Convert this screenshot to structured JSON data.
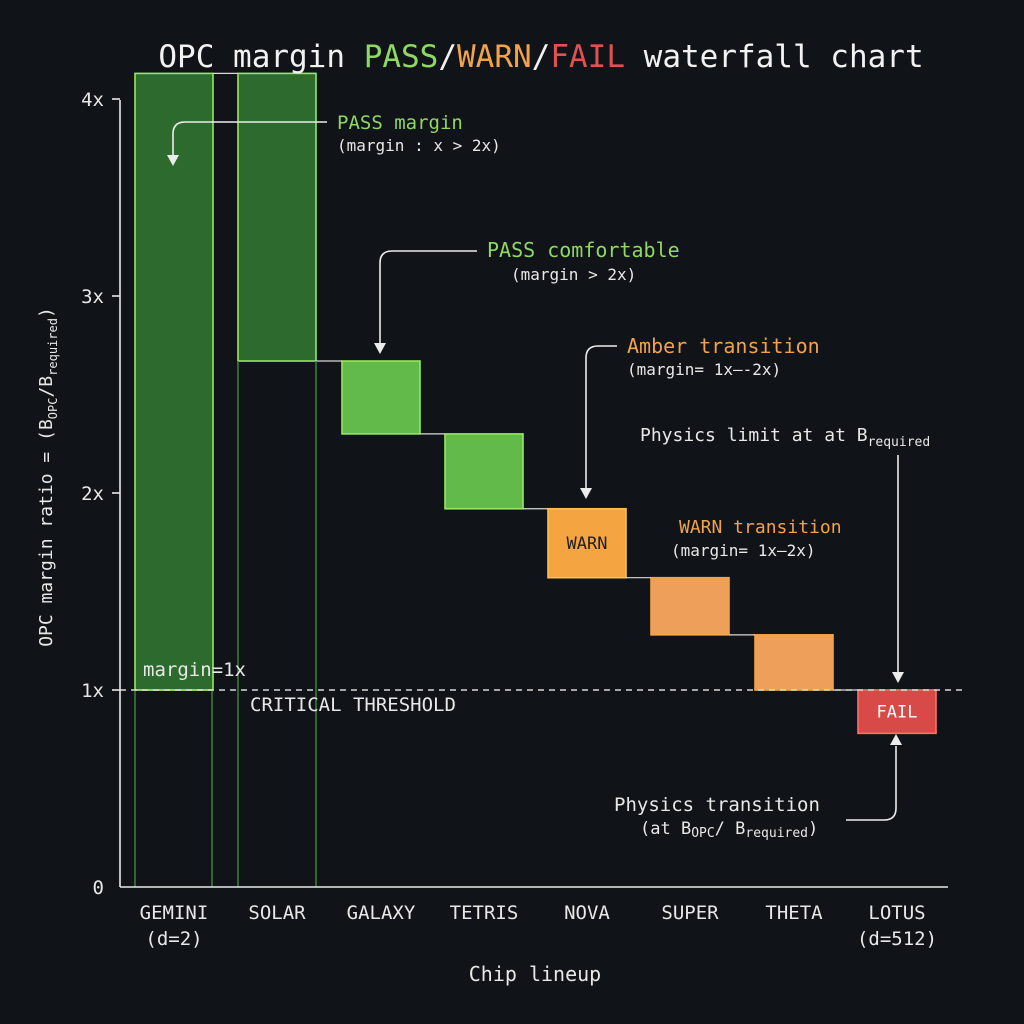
{
  "chart_data": {
    "type": "bar",
    "subtype": "waterfall",
    "title_parts": [
      {
        "text": "OPC margin ",
        "color": "#f2f2f2"
      },
      {
        "text": "PASS",
        "color": "#8fd861"
      },
      {
        "text": "/",
        "color": "#f2f2f2"
      },
      {
        "text": "WARN",
        "color": "#f2a24b"
      },
      {
        "text": "/",
        "color": "#f2f2f2"
      },
      {
        "text": "FAIL",
        "color": "#e0514f"
      },
      {
        "text": " waterfall chart",
        "color": "#f2f2f2"
      }
    ],
    "xlabel": "Chip lineup",
    "ylabel_parts": [
      {
        "text": "OPC margin ratio = (B",
        "sub": false
      },
      {
        "text": "OPC",
        "sub": true
      },
      {
        "text": "/B",
        "sub": false
      },
      {
        "text": "required",
        "sub": true
      },
      {
        "text": ")",
        "sub": false
      }
    ],
    "ylim": [
      0,
      4.5
    ],
    "yticks": [
      {
        "value": 0,
        "label": "0"
      },
      {
        "value": 1,
        "label": "1x"
      },
      {
        "value": 2,
        "label": "2x"
      },
      {
        "value": 3,
        "label": "3x"
      },
      {
        "value": 4,
        "label": "4x"
      }
    ],
    "categories": [
      {
        "line1": "GEMINI",
        "line2": "(d=2)"
      },
      {
        "line1": "SOLAR",
        "line2": ""
      },
      {
        "line1": "GALAXY",
        "line2": ""
      },
      {
        "line1": "TETRIS",
        "line2": ""
      },
      {
        "line1": "NOVA",
        "line2": ""
      },
      {
        "line1": "SUPER",
        "line2": ""
      },
      {
        "line1": "THETA",
        "line2": ""
      },
      {
        "line1": "LOTUS",
        "line2": "(d=512)"
      }
    ],
    "bars": [
      {
        "low": 1.0,
        "high": 4.13,
        "status": "pass-dark",
        "label": ""
      },
      {
        "low": 2.67,
        "high": 4.13,
        "status": "pass-dark",
        "label": ""
      },
      {
        "low": 2.3,
        "high": 2.67,
        "status": "pass",
        "label": ""
      },
      {
        "low": 1.92,
        "high": 2.3,
        "status": "pass",
        "label": ""
      },
      {
        "low": 1.57,
        "high": 1.92,
        "status": "warn",
        "label": "WARN"
      },
      {
        "low": 1.28,
        "high": 1.57,
        "status": "warn-light",
        "label": ""
      },
      {
        "low": 1.0,
        "high": 1.28,
        "status": "warn-light",
        "label": ""
      },
      {
        "low": 0.78,
        "high": 1.0,
        "status": "fail",
        "label": "FAIL"
      }
    ],
    "threshold": {
      "value": 1.0,
      "label": "CRITICAL THRESHOLD",
      "margin_label": "margin=1x"
    },
    "colors": {
      "pass_dark_fill": "#2d6a2d",
      "pass_fill": "#62ba4a",
      "pass_stroke": "#9ae65e",
      "warn_fill": "#f4a441",
      "warn_light_fill": "#ee9f5a",
      "warn_stroke": "#f7c24a",
      "fail_fill": "#d84a47",
      "pass_text": "#8fd861",
      "warn_text": "#f2a24b",
      "axis": "#e8e8e8",
      "text": "#e8e8e8"
    },
    "annotations": [
      {
        "id": "pass-margin",
        "line1": "PASS margin",
        "line2": "(margin : x > 2x)",
        "color": "#8fd861"
      },
      {
        "id": "pass-comfortable",
        "line1": "PASS comfortable",
        "line2": "(margin > 2x)",
        "color": "#8fd861"
      },
      {
        "id": "amber-transition",
        "line1": "Amber transition",
        "line2": "(margin= 1x—-2x)",
        "color": "#f2a24b"
      },
      {
        "id": "warn-transition",
        "line1": "WARN transition",
        "line2": "(margin= 1x—2x)",
        "color": "#f2a24b"
      },
      {
        "id": "physics-limit",
        "line1": "Physics limit at at B",
        "sub": "required",
        "color": "#e8e8e8"
      },
      {
        "id": "physics-transition",
        "line1": "Physics transition",
        "line2a": "(at B",
        "sub1": "OPC",
        "line2b": "/ B",
        "sub2": "required",
        "line2c": ")",
        "color": "#e8e8e8"
      }
    ]
  }
}
